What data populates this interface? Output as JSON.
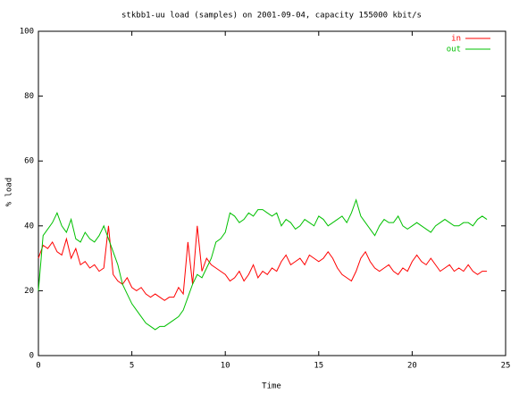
{
  "chart_data": {
    "type": "line",
    "title": "stkbb1-uu load (samples) on 2001-09-04, capacity 155000 kbit/s",
    "x_label": "Time",
    "y_label": "% load",
    "xlim": [
      0,
      25
    ],
    "xticks": [
      0,
      5,
      10,
      15,
      20,
      25
    ],
    "ylim": [
      0,
      100
    ],
    "yticks": [
      0,
      20,
      40,
      60,
      80,
      100
    ],
    "grid": false,
    "legend": "top-right",
    "x": [
      0,
      0.25,
      0.5,
      0.75,
      1,
      1.25,
      1.5,
      1.75,
      2,
      2.25,
      2.5,
      2.75,
      3,
      3.25,
      3.5,
      3.75,
      4,
      4.25,
      4.5,
      4.75,
      5,
      5.25,
      5.5,
      5.75,
      6,
      6.25,
      6.5,
      6.75,
      7,
      7.25,
      7.5,
      7.75,
      8,
      8.25,
      8.5,
      8.75,
      9,
      9.25,
      9.5,
      9.75,
      10,
      10.25,
      10.5,
      10.75,
      11,
      11.25,
      11.5,
      11.75,
      12,
      12.25,
      12.5,
      12.75,
      13,
      13.25,
      13.5,
      13.75,
      14,
      14.25,
      14.5,
      14.75,
      15,
      15.25,
      15.5,
      15.75,
      16,
      16.25,
      16.5,
      16.75,
      17,
      17.25,
      17.5,
      17.75,
      18,
      18.25,
      18.5,
      18.75,
      19,
      19.25,
      19.5,
      19.75,
      20,
      20.25,
      20.5,
      20.75,
      21,
      21.25,
      21.5,
      21.75,
      22,
      22.25,
      22.5,
      22.75,
      23,
      23.25,
      23.5,
      23.75,
      24
    ],
    "series": [
      {
        "name": "in",
        "color": "#ff0000",
        "values": [
          30,
          34,
          33,
          35,
          32,
          31,
          36,
          30,
          33,
          28,
          29,
          27,
          28,
          26,
          27,
          40,
          25,
          23,
          22,
          24,
          21,
          20,
          21,
          19,
          18,
          19,
          18,
          17,
          18,
          18,
          21,
          19,
          35,
          22,
          40,
          26,
          30,
          28,
          27,
          26,
          25,
          23,
          24,
          26,
          23,
          25,
          28,
          24,
          26,
          25,
          27,
          26,
          29,
          31,
          28,
          29,
          30,
          28,
          31,
          30,
          29,
          30,
          32,
          30,
          27,
          25,
          24,
          23,
          26,
          30,
          32,
          29,
          27,
          26,
          27,
          28,
          26,
          25,
          27,
          26,
          29,
          31,
          29,
          28,
          30,
          28,
          26,
          27,
          28,
          26,
          27,
          26,
          28,
          26,
          25,
          26,
          26
        ]
      },
      {
        "name": "out",
        "color": "#00c000",
        "values": [
          20,
          37,
          39,
          41,
          44,
          40,
          38,
          42,
          36,
          35,
          38,
          36,
          35,
          37,
          40,
          36,
          32,
          28,
          22,
          19,
          16,
          14,
          12,
          10,
          9,
          8,
          9,
          9,
          10,
          11,
          12,
          14,
          18,
          22,
          25,
          24,
          27,
          30,
          35,
          36,
          38,
          44,
          43,
          41,
          42,
          44,
          43,
          45,
          45,
          44,
          43,
          44,
          40,
          42,
          41,
          39,
          40,
          42,
          41,
          40,
          43,
          42,
          40,
          41,
          42,
          43,
          41,
          44,
          48,
          43,
          41,
          39,
          37,
          40,
          42,
          41,
          41,
          43,
          40,
          39,
          40,
          41,
          40,
          39,
          38,
          40,
          41,
          42,
          41,
          40,
          40,
          41,
          41,
          40,
          42,
          43,
          42
        ]
      }
    ]
  }
}
